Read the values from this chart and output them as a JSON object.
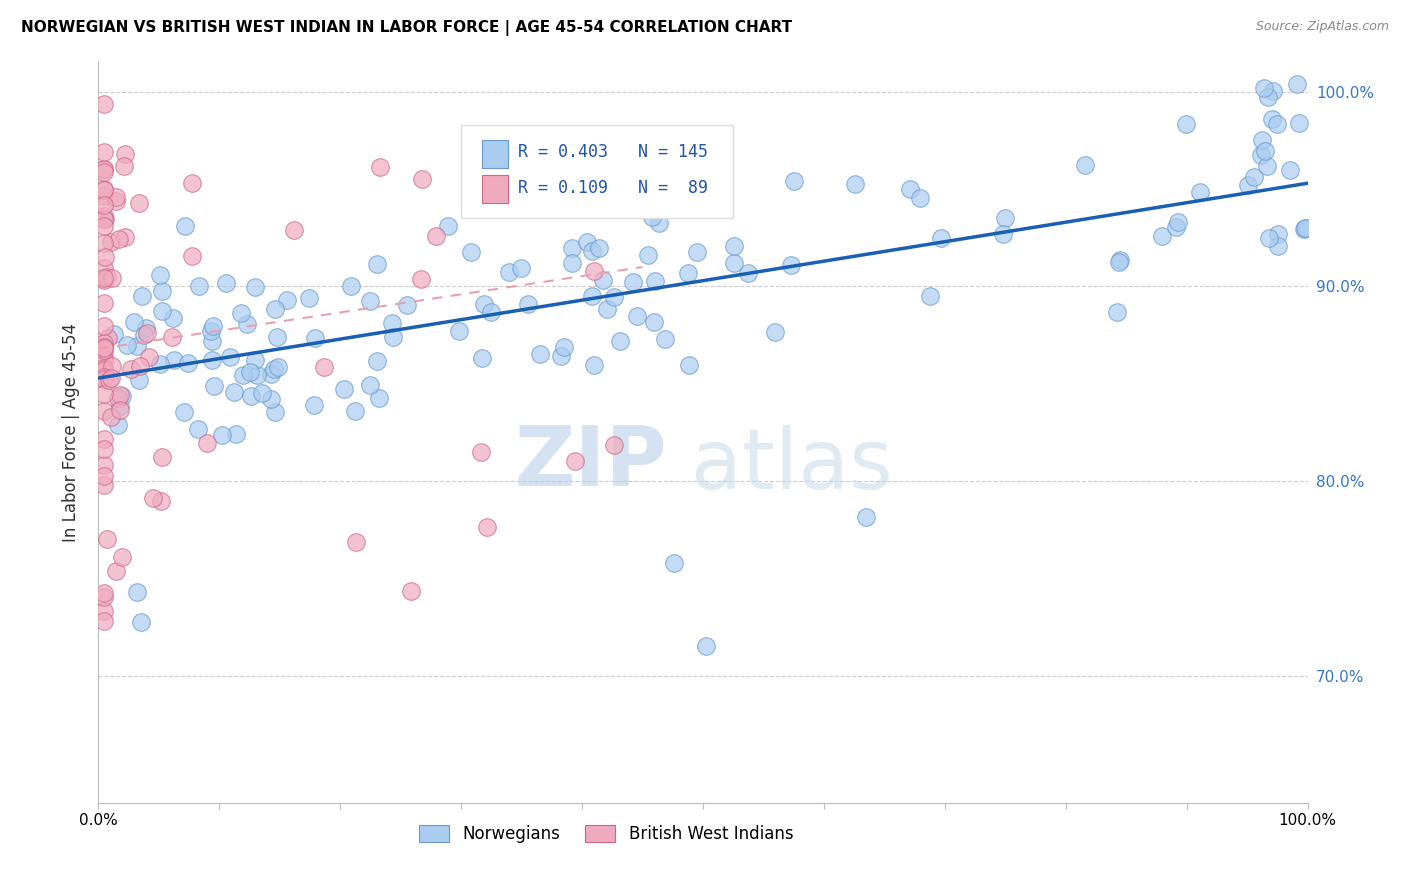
{
  "title": "NORWEGIAN VS BRITISH WEST INDIAN IN LABOR FORCE | AGE 45-54 CORRELATION CHART",
  "source": "Source: ZipAtlas.com",
  "ylabel": "In Labor Force | Age 45-54",
  "xmin": 0.0,
  "xmax": 1.0,
  "ymin": 0.635,
  "ymax": 1.015,
  "norwegian_color": "#aaccf0",
  "norwegian_edge_color": "#6699cc",
  "british_color": "#f0aac0",
  "british_edge_color": "#cc6688",
  "norwegian_R": 0.403,
  "norwegian_N": 145,
  "british_R": 0.109,
  "british_N": 89,
  "regression_blue": "#1a5fb4",
  "regression_pink_color": "#e8a0b0",
  "legend_label_norwegian": "Norwegians",
  "legend_label_british": "British West Indians",
  "watermark_zip": "ZIP",
  "watermark_atlas": "atlas",
  "blue_line_x0": 0.0,
  "blue_line_y0": 0.853,
  "blue_line_x1": 1.0,
  "blue_line_y1": 0.953,
  "pink_line_x0": 0.0,
  "pink_line_y0": 0.868,
  "pink_line_x1": 0.45,
  "pink_line_y1": 0.91,
  "grid_color": "#cccccc",
  "grid_yticks": [
    0.7,
    0.8,
    0.9,
    1.0
  ]
}
